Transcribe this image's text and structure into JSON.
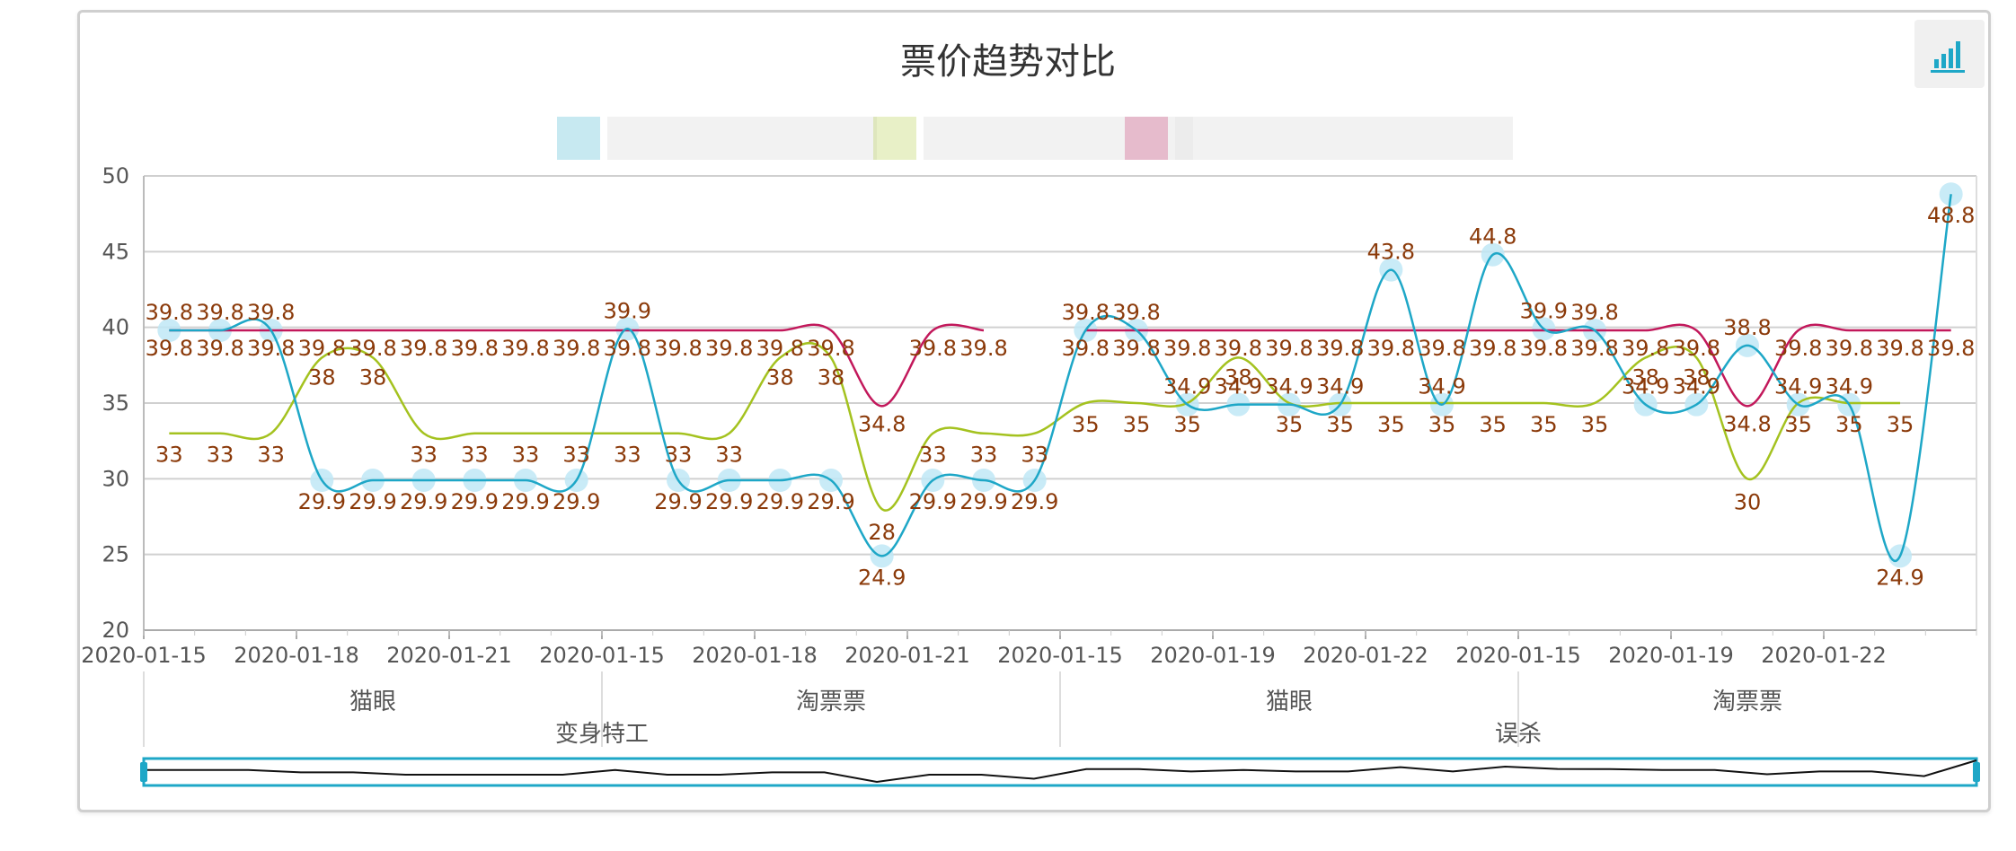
{
  "chart_data": {
    "type": "line",
    "title": "票价趋势对比",
    "ylim": [
      20,
      50
    ],
    "y_ticks": [
      20,
      25,
      30,
      35,
      40,
      45,
      50
    ],
    "grid": true,
    "legend_placement": "top-center",
    "legend_blurred": true,
    "colors": {
      "blue": "#1ea7c7",
      "green": "#a4c21f",
      "red": "#c2185b",
      "label": "#8b3a0a",
      "grid": "#d0d0d0",
      "marker": "#bfe8f6"
    },
    "x_tick_labels": [
      "2020-01-15",
      "2020-01-18",
      "2020-01-21",
      "2020-01-15",
      "2020-01-18",
      "2020-01-21",
      "2020-01-15",
      "2020-01-19",
      "2020-01-22",
      "2020-01-15",
      "2020-01-19",
      "2020-01-22"
    ],
    "categories_level2": [
      "猫眼",
      "淘票票",
      "猫眼",
      "淘票票"
    ],
    "categories_level1": [
      "变身特工",
      "误杀"
    ],
    "series": [
      {
        "color": "blue",
        "values": [
          39.8,
          39.8,
          39.8,
          29.9,
          29.9,
          29.9,
          29.9,
          29.9,
          29.9,
          39.9,
          29.9,
          29.9,
          29.9,
          29.9,
          24.9,
          29.9,
          29.9,
          29.9,
          39.8,
          39.8,
          34.9,
          34.9,
          34.9,
          34.9,
          43.8,
          34.9,
          44.8,
          39.9,
          39.8,
          34.9,
          34.9,
          38.8,
          34.9,
          34.9,
          24.9,
          48.8
        ]
      },
      {
        "color": "green",
        "values": [
          33,
          33,
          33,
          38,
          38,
          33,
          33,
          33,
          33,
          33,
          33,
          33,
          38,
          38,
          28,
          33,
          33,
          33,
          35,
          35,
          35,
          38,
          35,
          35,
          35,
          35,
          35,
          35,
          35,
          38,
          38,
          30,
          35,
          35,
          35,
          null
        ]
      },
      {
        "color": "red",
        "values": [
          39.8,
          39.8,
          39.8,
          39.8,
          39.8,
          39.8,
          39.8,
          39.8,
          39.8,
          39.8,
          39.8,
          39.8,
          39.8,
          39.8,
          34.8,
          39.8,
          39.8,
          null,
          39.8,
          39.8,
          39.8,
          39.8,
          39.8,
          39.8,
          39.8,
          39.8,
          39.8,
          39.8,
          39.8,
          39.8,
          39.8,
          34.8,
          39.8,
          39.8,
          39.8,
          39.8
        ]
      }
    ],
    "zoom_range": [
      0,
      100
    ]
  }
}
